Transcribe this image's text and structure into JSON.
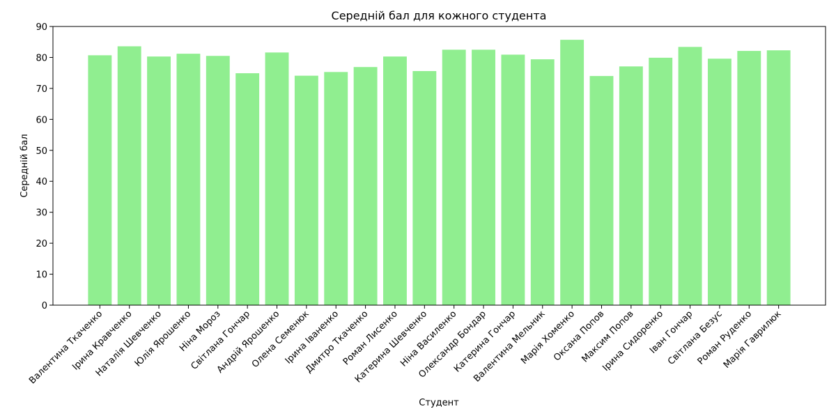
{
  "chart_data": {
    "type": "bar",
    "title": "Середній бал для кожного студента",
    "xlabel": "Студент",
    "ylabel": "Середній бал",
    "ylim": [
      0,
      90
    ],
    "yticks": [
      0,
      10,
      20,
      30,
      40,
      50,
      60,
      70,
      80,
      90
    ],
    "grid": false,
    "bar_color": "#90EE90",
    "categories": [
      "Валентина Ткаченко",
      "Ірина Кравченко",
      "Наталія Шевченко",
      "Юлія Ярошенко",
      "Ніна Мороз",
      "Світлана Гончар",
      "Андрій Ярошенко",
      "Олена Семенюк",
      "Ірина Іваненко",
      "Дмитро Ткаченко",
      "Роман Лисенко",
      "Катерина Шевченко",
      "Ніна Василенко",
      "Олександр Бондар",
      "Катерина Гончар",
      "Валентина Мельник",
      "Марія Хоменко",
      "Оксана Попов",
      "Максим Попов",
      "Ірина Сидоренко",
      "Іван Гончар",
      "Світлана Безус",
      "Роман Руденко",
      "Марія Гаврилюк"
    ],
    "values": [
      80.7,
      83.6,
      80.3,
      81.2,
      80.5,
      74.9,
      81.6,
      74.1,
      75.3,
      76.9,
      80.3,
      75.6,
      82.5,
      82.5,
      80.9,
      79.4,
      85.7,
      74.0,
      77.1,
      79.9,
      83.4,
      79.6,
      82.1,
      82.3
    ]
  }
}
